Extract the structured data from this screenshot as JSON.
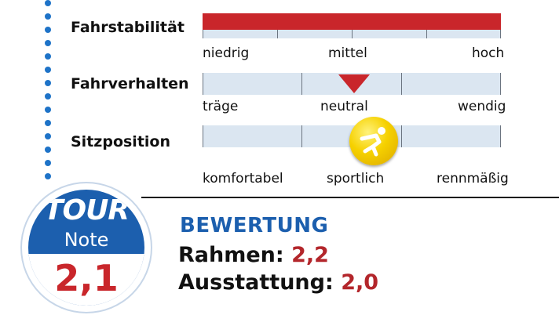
{
  "rows": [
    {
      "label": "Fahrstabilität",
      "ticks": [
        "niedrig",
        "mittel",
        "hoch"
      ],
      "value": "hoch"
    },
    {
      "label": "Fahrverhalten",
      "ticks": [
        "träge",
        "neutral",
        "wendig"
      ],
      "value": "neutral"
    },
    {
      "label": "Sitzposition",
      "ticks": [
        "komfortabel",
        "sportlich",
        "rennmäßig"
      ],
      "value": "sportlich"
    }
  ],
  "badge": {
    "logo": "TOUR",
    "note": "Note",
    "grade": "2,1"
  },
  "rating": {
    "title": "BEWERTUNG",
    "frame_label": "Rahmen:",
    "frame_value": "2,2",
    "equipment_label": "Ausstattung:",
    "equipment_value": "2,0"
  },
  "colors": {
    "accent_red": "#c9262b",
    "brand_blue": "#1c5fae",
    "scale_bg": "#dbe6f1",
    "marker_yellow": "#f6d100"
  },
  "icons": {
    "stability_marker": "red-bar",
    "handling_marker": "red-triangle-icon",
    "position_marker": "cyclist-icon"
  }
}
